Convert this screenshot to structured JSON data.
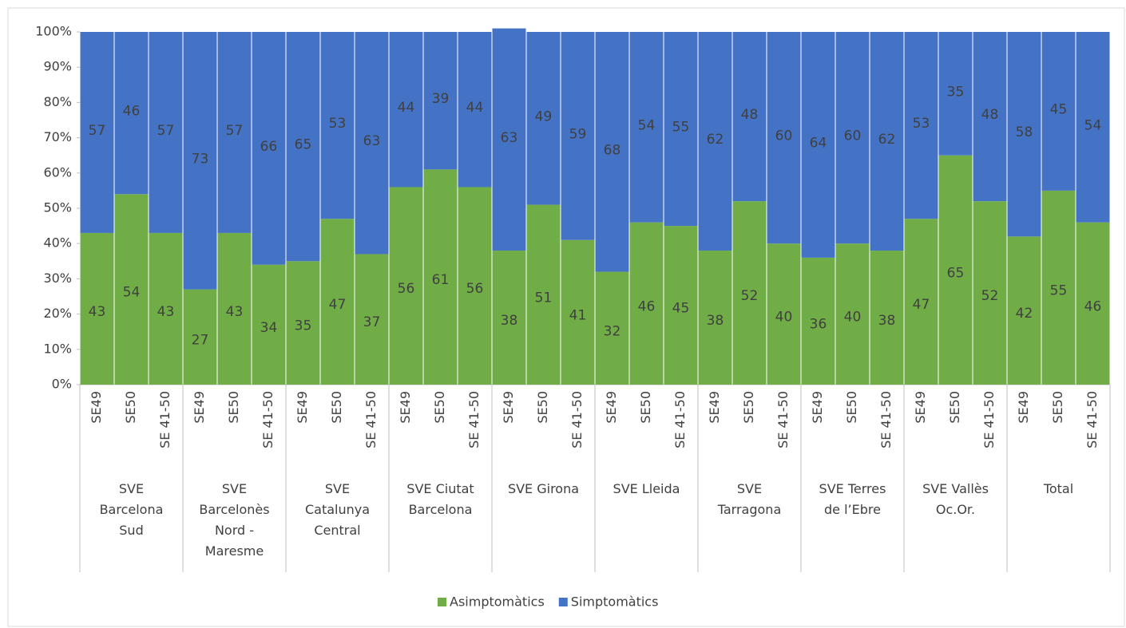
{
  "chart_data": {
    "type": "stacked_bar",
    "categories": [
      "SE49",
      "SE50",
      "SE 41-50",
      "SE49",
      "SE50",
      "SE 41-50",
      "SE49",
      "SE50",
      "SE 41-50",
      "SE49",
      "SE50",
      "SE 41-50",
      "SE49",
      "SE50",
      "SE 41-50",
      "SE49",
      "SE50",
      "SE 41-50",
      "SE49",
      "SE50",
      "SE 41-50",
      "SE49",
      "SE50",
      "SE 41-50",
      "SE49",
      "SE50",
      "SE 41-50",
      "SE49",
      "SE50",
      "SE 41-50"
    ],
    "groups": [
      "SVE\nBarcelona\nSud",
      "SVE\nBarcelonès\nNord -\nMaresme",
      "SVE\nCatalunya\nCentral",
      "SVE Ciutat\nBarcelona",
      "SVE Girona",
      "SVE Lleida",
      "SVE\nTarragona",
      "SVE Terres\nde l’Ebre",
      "SVE Vallès\nOc.Or.",
      "Total"
    ],
    "series": [
      {
        "name": "Asimptomàtics",
        "color": "#70ad47",
        "values": [
          43,
          54,
          43,
          27,
          43,
          34,
          35,
          47,
          37,
          56,
          61,
          56,
          38,
          51,
          41,
          32,
          46,
          45,
          38,
          52,
          40,
          36,
          40,
          38,
          47,
          65,
          52,
          42,
          55,
          46
        ]
      },
      {
        "name": "Simptomàtics",
        "color": "#4472c4",
        "values": [
          57,
          46,
          57,
          73,
          57,
          66,
          65,
          53,
          63,
          44,
          39,
          44,
          63,
          49,
          59,
          68,
          54,
          55,
          62,
          48,
          60,
          64,
          60,
          62,
          53,
          35,
          48,
          58,
          45,
          54
        ]
      }
    ],
    "ylim": [
      0,
      100
    ],
    "yticks": [
      {
        "value": 0,
        "label": "0%"
      },
      {
        "value": 10,
        "label": "10%"
      },
      {
        "value": 20,
        "label": "20%"
      },
      {
        "value": 30,
        "label": "30%"
      },
      {
        "value": 40,
        "label": "40%"
      },
      {
        "value": 50,
        "label": "50%"
      },
      {
        "value": 60,
        "label": "60%"
      },
      {
        "value": 70,
        "label": "70%"
      },
      {
        "value": 80,
        "label": "80%"
      },
      {
        "value": 90,
        "label": "90%"
      },
      {
        "value": 100,
        "label": "100%"
      }
    ],
    "legend": "bottom"
  }
}
